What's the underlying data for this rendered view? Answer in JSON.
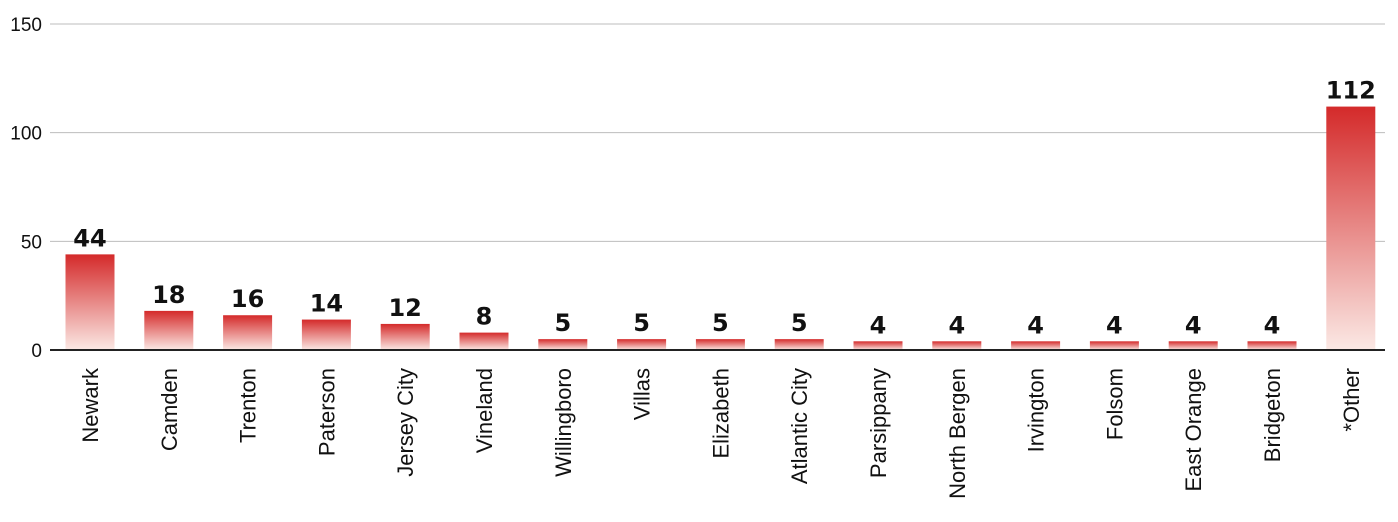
{
  "chart_data": {
    "type": "bar",
    "categories": [
      "Newark",
      "Camden",
      "Trenton",
      "Paterson",
      "Jersey City",
      "Vineland",
      "Willingboro",
      "Villas",
      "Elizabeth",
      "Atlantic City",
      "Parsippany",
      "North Bergen",
      "Irvington",
      "Folsom",
      "East Orange",
      "Bridgeton",
      "*Other"
    ],
    "values": [
      44,
      18,
      16,
      14,
      12,
      8,
      5,
      5,
      5,
      5,
      4,
      4,
      4,
      4,
      4,
      4,
      112
    ],
    "data_labels": [
      "44",
      "18",
      "16",
      "14",
      "12",
      "8",
      "5",
      "5",
      "5",
      "5",
      "4",
      "4",
      "4",
      "4",
      "4",
      "4",
      "112"
    ],
    "yticks": [
      0,
      50,
      100,
      150
    ],
    "ytick_labels": [
      "0",
      "50",
      "100",
      "150"
    ],
    "ylim": [
      0,
      150
    ],
    "grid": true,
    "title": "",
    "xlabel": "",
    "ylabel": "",
    "colors": {
      "bar_top": "#d42a2a",
      "bar_bottom": "#fbe9e5",
      "grid": "#bdbdbd",
      "axis": "#222222"
    }
  }
}
